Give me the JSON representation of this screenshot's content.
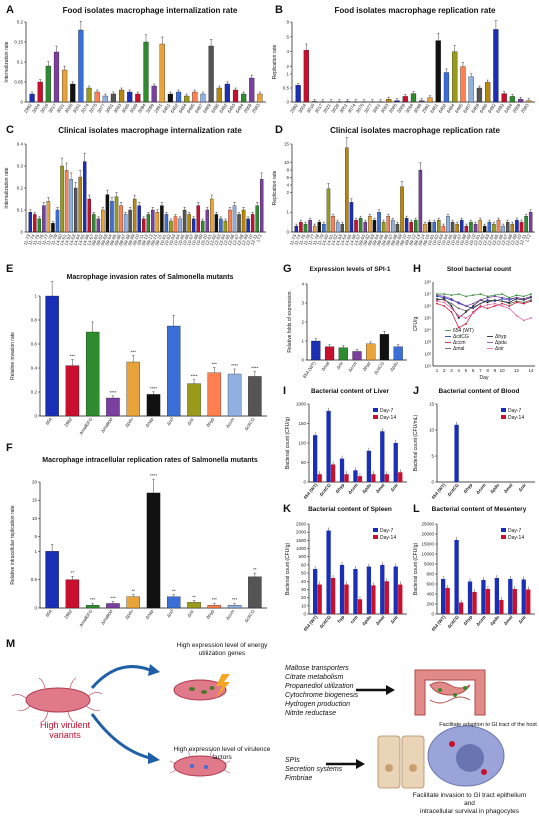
{
  "labels": {
    "A": "A",
    "B": "B",
    "C": "C",
    "D": "D",
    "E": "E",
    "F": "F",
    "G": "G",
    "H": "H",
    "I": "I",
    "J": "J",
    "K": "K",
    "L": "L",
    "M": "M"
  },
  "colors": [
    "#1a2fb5",
    "#c8102e",
    "#2e8b2e",
    "#7b3fa0",
    "#e8a33a",
    "#111111",
    "#3a6fd8",
    "#9a9a1a",
    "#ff7f50",
    "#8fb0e0",
    "#555555",
    "#b8860b"
  ],
  "chart_data": [
    {
      "id": "A",
      "type": "bar",
      "title": "Food isolates macrophage internalization rate",
      "ylabel": "Internalization rate",
      "ylim": [
        0,
        0.2
      ],
      "yticks": [
        0,
        0.05,
        0.1,
        0.15,
        0.2
      ],
      "categories": [
        "2992",
        "3004",
        "3016",
        "3017",
        "3021",
        "3026",
        "3051",
        "3074",
        "3075",
        "3077",
        "3081",
        "3083",
        "3085",
        "3089",
        "3094",
        "3099",
        "2991",
        "6481",
        "6482",
        "6484",
        "6485",
        "6487",
        "6489",
        "6490",
        "6492",
        "6493",
        "6494",
        "2869",
        "2883"
      ],
      "values": [
        0.02,
        0.05,
        0.09,
        0.125,
        0.08,
        0.045,
        0.18,
        0.035,
        0.025,
        0.015,
        0.02,
        0.03,
        0.025,
        0.02,
        0.15,
        0.04,
        0.145,
        0.02,
        0.025,
        0.015,
        0.025,
        0.02,
        0.14,
        0.035,
        0.045,
        0.03,
        0.02,
        0.06,
        0.02
      ]
    },
    {
      "id": "B",
      "type": "bar",
      "title": "Food isolates macrophage replication rate",
      "ylabel": "Replication rate",
      "ylim": [
        0,
        8
      ],
      "yticks": [
        0,
        0.5,
        1,
        2,
        4,
        6,
        8
      ],
      "categories": [
        "2992",
        "3004",
        "3016",
        "3017",
        "3021",
        "3026",
        "3051",
        "3074",
        "3075",
        "3077",
        "3081",
        "3083",
        "3085",
        "3089",
        "3094",
        "3099",
        "2991",
        "6481",
        "6482",
        "6484",
        "6485",
        "6487",
        "6489",
        "6490",
        "6492",
        "6493",
        "6494",
        "2869",
        "2883"
      ],
      "values": [
        0.6,
        4.2,
        0.02,
        0.01,
        0.01,
        0.01,
        0.02,
        0.01,
        0.01,
        0.01,
        0.01,
        0.1,
        0.05,
        0.2,
        0.3,
        0.05,
        0.15,
        5.5,
        1.2,
        4.0,
        2.0,
        0.9,
        0.5,
        0.7,
        7.0,
        0.3,
        0.2,
        0.1,
        0.05
      ]
    },
    {
      "id": "C",
      "type": "bar",
      "title": "Clinical isolates macrophage internalization rate",
      "ylabel": "Internalization rate",
      "ylim": [
        0,
        0.4
      ],
      "yticks": [
        0,
        0.1,
        0.2,
        0.3,
        0.4
      ],
      "categories": [
        "11-73",
        "11-74",
        "11-75",
        "11-76",
        "11-77",
        "11-78",
        "11-79",
        "14-50",
        "14-51",
        "14-52",
        "14-53",
        "14-54",
        "14-55",
        "14-56",
        "14-57",
        "09-01",
        "09-02",
        "09-03",
        "09-04",
        "09-05",
        "09-06",
        "09-07",
        "09-08",
        "09-09",
        "09-10",
        "09-11",
        "09-12",
        "09-13",
        "09-14",
        "09-15",
        "10-01",
        "10-02",
        "10-03",
        "10-04",
        "10-05",
        "10-06",
        "10-07",
        "10-08",
        "10-09",
        "10-10",
        "12-01",
        "12-02",
        "12-03",
        "12-04",
        "12-05",
        "12-06",
        "12-07",
        "12-08",
        "12-09",
        "12-10",
        "12-11",
        "LT2"
      ],
      "values": [
        0.09,
        0.08,
        0.06,
        0.12,
        0.14,
        0.04,
        0.1,
        0.3,
        0.28,
        0.24,
        0.2,
        0.25,
        0.32,
        0.15,
        0.08,
        0.06,
        0.1,
        0.17,
        0.14,
        0.16,
        0.12,
        0.08,
        0.1,
        0.15,
        0.12,
        0.06,
        0.08,
        0.1,
        0.09,
        0.12,
        0.08,
        0.05,
        0.07,
        0.06,
        0.1,
        0.08,
        0.06,
        0.12,
        0.05,
        0.1,
        0.15,
        0.08,
        0.06,
        0.05,
        0.1,
        0.12,
        0.08,
        0.1,
        0.06,
        0.08,
        0.12,
        0.24
      ]
    },
    {
      "id": "D",
      "type": "bar",
      "title": "Clinical isolates macrophage replication rate",
      "ylabel": "Replication rate",
      "ylim": [
        0,
        15
      ],
      "yticks": [
        0,
        1,
        2,
        4,
        6,
        8,
        10,
        15
      ],
      "categories": [
        "11-73",
        "11-74",
        "11-75",
        "11-76",
        "11-77",
        "11-78",
        "11-79",
        "14-50",
        "14-51",
        "14-52",
        "14-53",
        "14-54",
        "14-55",
        "14-56",
        "14-57",
        "09-01",
        "09-02",
        "09-03",
        "09-04",
        "09-05",
        "09-06",
        "09-07",
        "09-08",
        "09-09",
        "09-10",
        "09-11",
        "09-12",
        "09-13",
        "09-14",
        "09-15",
        "10-01",
        "10-02",
        "10-03",
        "10-04",
        "10-05",
        "10-06",
        "10-07",
        "10-08",
        "10-09",
        "10-10",
        "12-01",
        "12-02",
        "12-03",
        "12-04",
        "12-05",
        "12-06",
        "12-07",
        "12-08",
        "12-09",
        "12-10",
        "12-11",
        "LT2"
      ],
      "values": [
        0.3,
        0.5,
        0.4,
        0.6,
        0.3,
        0.5,
        0.4,
        3.0,
        0.8,
        0.5,
        0.4,
        14.0,
        1.5,
        0.6,
        0.7,
        0.5,
        0.8,
        0.6,
        1.0,
        0.5,
        0.8,
        0.6,
        0.4,
        3.5,
        0.7,
        0.5,
        0.6,
        8.0,
        0.4,
        0.5,
        0.5,
        0.6,
        0.3,
        0.8,
        0.5,
        0.4,
        0.6,
        0.3,
        0.5,
        0.4,
        0.6,
        0.3,
        0.5,
        0.4,
        0.6,
        0.3,
        0.5,
        0.4,
        0.6,
        0.5,
        0.8,
        1.0
      ]
    },
    {
      "id": "E",
      "type": "bar",
      "title": "Macrophage invasion rates of Salmonella mutants",
      "ylabel": "Relative invasion rate",
      "ylim": [
        0,
        1.0
      ],
      "yticks": [
        0,
        0.2,
        0.4,
        0.6,
        0.8,
        1.0
      ],
      "categories": [
        "654",
        "2992",
        "ΔmalEFG",
        "ΔmalKM",
        "Δpdu",
        "Δnap",
        "Δnrf",
        "Δnir",
        "Δhyp",
        "Δccm",
        "ΔcitCG"
      ],
      "values": [
        1.0,
        0.42,
        0.7,
        0.15,
        0.45,
        0.18,
        0.75,
        0.27,
        0.36,
        0.35,
        0.33
      ],
      "sig": [
        "",
        "***",
        "",
        "****",
        "***",
        "****",
        "",
        "****",
        "***",
        "****",
        "****"
      ]
    },
    {
      "id": "F",
      "type": "bar",
      "title": "Macrophage intracellular replication rates of Salmonella mutants",
      "ylabel": "Relative intracellular replication rate",
      "ylim": [
        0,
        20
      ],
      "yticks": [
        0,
        0.5,
        1,
        5,
        10,
        15,
        20
      ],
      "categories": [
        "654",
        "2992",
        "ΔmalEFG",
        "ΔmalKM",
        "Δpdu",
        "Δnap",
        "Δnrf",
        "Δnir",
        "Δhyp",
        "Δccm",
        "ΔcitCG"
      ],
      "values": [
        1.0,
        0.5,
        0.05,
        0.08,
        0.2,
        17.0,
        0.2,
        0.1,
        0.05,
        0.05,
        0.55
      ],
      "sig": [
        "",
        "**",
        "***",
        "***",
        "**",
        "****",
        "**",
        "**",
        "***",
        "***",
        "**"
      ]
    },
    {
      "id": "G",
      "type": "bar",
      "title": "Expression levels of SPI-1",
      "ylabel": "Relative folds of expression",
      "ylim": [
        0,
        4
      ],
      "yticks": [
        0,
        1,
        2,
        3,
        4
      ],
      "categories": [
        "654 (WT)",
        "Δmal",
        "Δnir",
        "Δccm",
        "Δhyp",
        "ΔcitCG",
        "Δpdu"
      ],
      "values": [
        1.0,
        0.7,
        0.65,
        0.45,
        0.85,
        1.35,
        0.7
      ]
    },
    {
      "id": "H",
      "type": "line",
      "title": "Stool bacterial count",
      "ylabel": "CFU/g",
      "xlabel": "Day",
      "x": [
        1,
        2,
        3,
        4,
        5,
        6,
        7,
        8,
        9,
        10,
        11,
        12,
        13,
        14
      ],
      "yticks": [
        "10¹",
        "10²",
        "10³",
        "10⁴",
        "10⁵",
        "10⁶",
        "10⁷",
        "10⁸"
      ],
      "series": [
        {
          "name": "654 (WT)",
          "values": [
            7.0,
            7.0,
            6.9,
            7.0,
            6.8,
            6.9,
            7.0,
            6.8,
            6.9,
            7.0,
            6.7,
            6.9,
            6.8,
            7.0
          ]
        },
        {
          "name": "ΔcitCG",
          "values": [
            6.8,
            6.7,
            6.5,
            6.3,
            6.0,
            5.8,
            6.2,
            6.5,
            6.4,
            6.6,
            6.5,
            6.7,
            6.6,
            6.8
          ]
        },
        {
          "name": "Δhyp",
          "values": [
            6.5,
            6.6,
            6.0,
            5.0,
            5.5,
            6.0,
            6.5,
            6.3,
            6.5,
            6.4,
            6.3,
            6.6,
            6.5,
            6.7
          ]
        },
        {
          "name": "Δccm",
          "values": [
            6.2,
            6.0,
            5.5,
            4.2,
            4.5,
            5.5,
            6.0,
            5.8,
            6.0,
            6.2,
            6.0,
            6.3,
            6.2,
            6.4
          ]
        },
        {
          "name": "Δpdu",
          "values": [
            6.9,
            6.8,
            6.6,
            6.2,
            6.0,
            6.2,
            6.5,
            6.7,
            6.8,
            6.7,
            6.6,
            6.7,
            6.6,
            6.8
          ]
        },
        {
          "name": "Δmal",
          "values": [
            6.6,
            6.5,
            6.2,
            5.8,
            5.6,
            5.9,
            6.2,
            6.4,
            6.5,
            6.4,
            6.2,
            6.4,
            6.3,
            6.5
          ]
        },
        {
          "name": "Δnir",
          "values": [
            6.4,
            6.3,
            5.8,
            5.2,
            5.0,
            5.4,
            5.9,
            6.1,
            6.2,
            6.0,
            5.8,
            5.2,
            4.8,
            5.0
          ]
        }
      ]
    },
    {
      "id": "I",
      "type": "bar",
      "title": "Bacterial content of Liver",
      "ylabel": "Bacterial count (CFU/g)",
      "categories": [
        "654 (WT)",
        "ΔcitCG",
        "Δhyp",
        "Δccm",
        "Δpdu",
        "Δmal",
        "Δnir"
      ],
      "yticks": [
        "0",
        "50",
        "100",
        "150",
        "1000"
      ],
      "series": [
        {
          "name": "Day-7",
          "values": [
            120,
            700,
            60,
            30,
            80,
            130,
            100
          ]
        },
        {
          "name": "Day-14",
          "values": [
            20,
            45,
            20,
            15,
            20,
            20,
            25
          ]
        }
      ]
    },
    {
      "id": "J",
      "type": "bar",
      "title": "Bacterial content of Blood",
      "ylabel": "Bacterial count (CFU/mL)",
      "categories": [
        "654 (WT)",
        "ΔcitCG",
        "Δhyp",
        "Δccm",
        "Δpdu",
        "Δmal",
        "Δnir"
      ],
      "yticks": [
        "0",
        "5",
        "10",
        "15"
      ],
      "series": [
        {
          "name": "Day-7",
          "values": [
            0,
            11,
            0,
            0,
            0,
            0,
            0
          ]
        },
        {
          "name": "Day-14",
          "values": [
            0,
            0,
            0,
            0,
            0,
            0,
            0
          ]
        }
      ]
    },
    {
      "id": "K",
      "type": "bar",
      "title": "Bacterial content of Spleen",
      "ylabel": "Bacterial count (CFU/g)",
      "categories": [
        "654 (WT)",
        "ΔcitCG",
        "hyp",
        "ccm",
        "Δpdu",
        "Δmal",
        "Δnir"
      ],
      "yticks": [
        "0",
        "10",
        "20",
        "30",
        "40",
        "50",
        "60",
        "500",
        "1000",
        "1500",
        "2000",
        "2500"
      ],
      "series": [
        {
          "name": "Day-7",
          "values": [
            55,
            2100,
            60,
            55,
            58,
            60,
            58
          ]
        },
        {
          "name": "Day-14",
          "values": [
            36,
            44,
            36,
            18,
            35,
            40,
            36
          ]
        }
      ]
    },
    {
      "id": "L",
      "type": "bar",
      "title": "Bacterial content of Mesentery",
      "ylabel": "Bacterial count (CFU/g)",
      "categories": [
        "654 (WT)",
        "ΔcitCG",
        "Δhyp",
        "Δccm",
        "Δpdu",
        "Δmal",
        "Δnir"
      ],
      "yticks": [
        "0",
        "200",
        "400",
        "600",
        "800",
        "5000",
        "10000",
        "15000",
        "20000",
        "25000"
      ],
      "series": [
        {
          "name": "Day-7",
          "values": [
            700,
            17000,
            650,
            680,
            720,
            700,
            690
          ]
        },
        {
          "name": "Day-14",
          "values": [
            520,
            230,
            440,
            500,
            280,
            500,
            490
          ]
        }
      ]
    }
  ],
  "legend_days": {
    "d7": "Day-7",
    "d14": "Day-14"
  },
  "diagram": {
    "center_label": "High virulent variants",
    "top_heading": "High expression level of energy utilization genes",
    "top_items": [
      "Maltose transporters",
      "Citrate metabolism",
      "Propanediol utilization",
      "Cytochrome biogenesis",
      "Hydrogen production",
      "Nitrite reductase"
    ],
    "top_result": "Facilitate adaption to GI tract of the host",
    "bottom_heading": "High expression level of virulence factors",
    "bottom_items": [
      "SPIs",
      "Secretion systems",
      "Fimbriae"
    ],
    "bottom_result_1": "Facilitate invasion to GI tract epithelium",
    "bottom_result_2": "and",
    "bottom_result_3": "intracellular survival in phagocytes"
  }
}
